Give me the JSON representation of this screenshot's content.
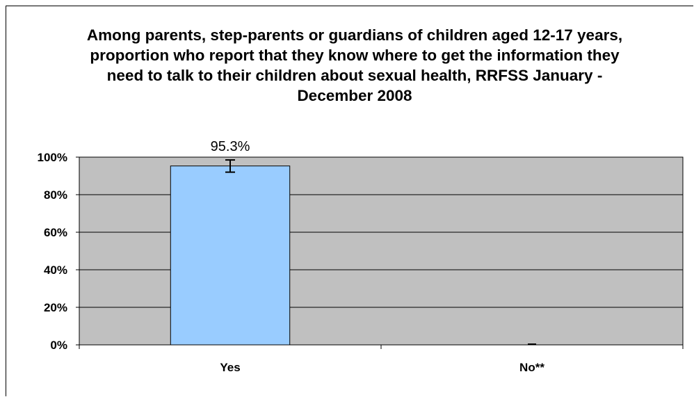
{
  "chart_data": {
    "type": "bar",
    "title": "Among parents, step-parents or guardians of children aged 12-17 years, proportion who report that they know where to get the information they need to talk to their children about sexual health, RRFSS January - December 2008",
    "categories": [
      "Yes",
      "No**"
    ],
    "values": [
      95.3,
      null
    ],
    "error_bars": [
      {
        "low": 92,
        "high": 98.5
      },
      null
    ],
    "data_labels": [
      "95.3%",
      ""
    ],
    "y_ticks": [
      "0%",
      "20%",
      "40%",
      "60%",
      "80%",
      "100%"
    ],
    "ylim": [
      0,
      100
    ],
    "xlabel": "",
    "ylabel": "",
    "grid": true,
    "legend": "none",
    "colors": {
      "bar": "#99ccff",
      "plot_background": "#c0c0c0",
      "gridline": "#000000"
    }
  }
}
